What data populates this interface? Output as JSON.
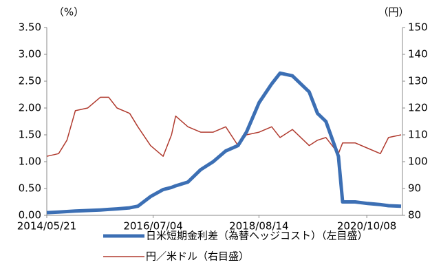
{
  "chart_data": {
    "type": "line",
    "y_label": "（%）",
    "y2_label": "（円）",
    "x": [
      "2014/05/21",
      "2014/08/15",
      "2014/10/15",
      "2014/12/15",
      "2015/03/15",
      "2015/06/15",
      "2015/08/15",
      "2015/10/15",
      "2016/01/15",
      "2016/03/15",
      "2016/06/15",
      "2016/09/15",
      "2016/11/15",
      "2016/12/15",
      "2017/03/15",
      "2017/06/15",
      "2017/09/15",
      "2017/12/15",
      "2018/03/15",
      "2018/05/15",
      "2018/08/15",
      "2018/11/15",
      "2019/01/15",
      "2019/04/15",
      "2019/08/15",
      "2019/10/15",
      "2019/12/15",
      "2020/03/15",
      "2020/04/15",
      "2020/07/15",
      "2020/10/15",
      "2021/01/15",
      "2021/03/15",
      "2021/06/15"
    ],
    "xlim": [
      "2014/05/21",
      "2021/06/25"
    ],
    "xticks": [
      "2014/05/21",
      "2016/07/04",
      "2018/08/14",
      "2020/10/08"
    ],
    "ylim": [
      0,
      3.5
    ],
    "yticks": [
      {
        "value": 0,
        "label": "0.00"
      },
      {
        "value": 0.5,
        "label": "0.50"
      },
      {
        "value": 1,
        "label": "1.00"
      },
      {
        "value": 1.5,
        "label": "1.50"
      },
      {
        "value": 2,
        "label": "2.00"
      },
      {
        "value": 2.5,
        "label": "2.50"
      },
      {
        "value": 3,
        "label": "3.00"
      },
      {
        "value": 3.5,
        "label": "3.50"
      }
    ],
    "y2lim": [
      80,
      150
    ],
    "y2ticks": [
      80,
      90,
      100,
      110,
      120,
      130,
      140,
      150
    ],
    "series": [
      {
        "name": "日米短期金利差（為替ヘッジコスト）（左目盛）",
        "color": "#3c6fb4",
        "width": 5,
        "values": [
          0.05,
          0.06,
          0.07,
          0.08,
          0.09,
          0.1,
          0.11,
          0.12,
          0.14,
          0.17,
          0.35,
          0.48,
          0.52,
          0.55,
          0.62,
          0.85,
          1.0,
          1.2,
          1.3,
          1.55,
          2.1,
          2.45,
          2.65,
          2.6,
          2.3,
          1.9,
          1.75,
          1.1,
          0.25,
          0.25,
          0.22,
          0.2,
          0.18,
          0.17
        ]
      },
      {
        "name": "円／米ドル（右目盛）",
        "color": "#b03a2e",
        "width": 1.5,
        "axis": "y2",
        "values": [
          102,
          103,
          108,
          119,
          120,
          124,
          124,
          120,
          118,
          113,
          106,
          102,
          110,
          117,
          113,
          111,
          111,
          113,
          106,
          110,
          111,
          113,
          109,
          112,
          106,
          108,
          109,
          103,
          107,
          107,
          105,
          103,
          109,
          110
        ]
      }
    ]
  }
}
